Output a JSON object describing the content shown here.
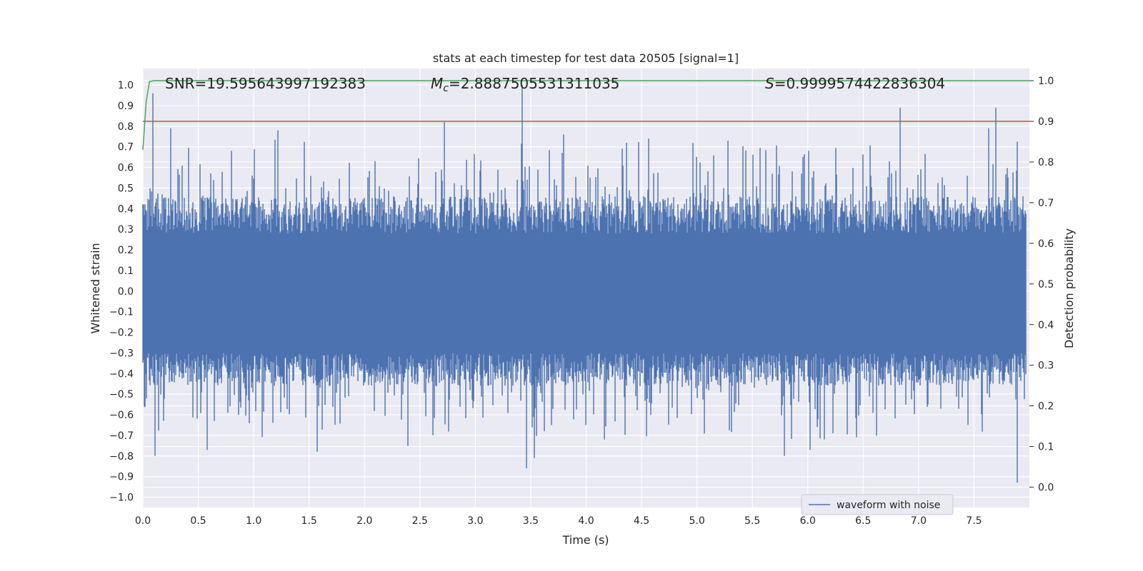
{
  "chart_data": {
    "type": "line",
    "title": "stats at each timestep for test data 20505 [signal=1]",
    "xlabel": "Time (s)",
    "ylabel": "Whitened strain",
    "ylabel_right": "Detection probability",
    "xlim": [
      0.0,
      8.0
    ],
    "ylim": [
      -1.05,
      1.08
    ],
    "ylim_right": [
      -0.05,
      1.03
    ],
    "x_ticks": [
      "0.0",
      "0.5",
      "1.0",
      "1.5",
      "2.0",
      "2.5",
      "3.0",
      "3.5",
      "4.0",
      "4.5",
      "5.0",
      "5.5",
      "6.0",
      "6.5",
      "7.0",
      "7.5"
    ],
    "y_ticks": [
      "1.0",
      "0.9",
      "0.8",
      "0.7",
      "0.6",
      "0.5",
      "0.4",
      "0.3",
      "0.2",
      "0.1",
      "0.0",
      "−0.1",
      "−0.2",
      "−0.3",
      "−0.4",
      "−0.5",
      "−0.6",
      "−0.7",
      "−0.8",
      "−0.9",
      "−1.0"
    ],
    "y_ticks_right": [
      "1.0",
      "0.9",
      "0.8",
      "0.7",
      "0.6",
      "0.5",
      "0.4",
      "0.3",
      "0.2",
      "0.1",
      "0.0"
    ],
    "grid": true,
    "legend": "bottom-right",
    "annotations": {
      "snr": "SNR=19.595643997192383",
      "mc_symbol": "M",
      "mc_sub": "c",
      "mc_value": "=2.8887505531311035",
      "s_symbol": "S",
      "s_value": "=0.9999574422836304"
    },
    "series": [
      {
        "name": "waveform with noise",
        "axis": "left",
        "color": "#4c72b0",
        "description_range": [
          -0.93,
          1.0
        ],
        "peaks": [
          {
            "x": 0.09,
            "y": 0.96
          },
          {
            "x": 0.25,
            "y": 0.79
          },
          {
            "x": 1.22,
            "y": 0.78
          },
          {
            "x": 2.72,
            "y": 0.82
          },
          {
            "x": 3.42,
            "y": 1.0
          },
          {
            "x": 3.8,
            "y": 0.76
          },
          {
            "x": 6.83,
            "y": 0.89
          },
          {
            "x": 7.63,
            "y": 0.79
          },
          {
            "x": 7.7,
            "y": 0.89
          }
        ],
        "troughs": [
          {
            "x": 0.11,
            "y": -0.8
          },
          {
            "x": 0.58,
            "y": -0.77
          },
          {
            "x": 1.57,
            "y": -0.78
          },
          {
            "x": 3.46,
            "y": -0.86
          },
          {
            "x": 3.53,
            "y": -0.81
          },
          {
            "x": 5.79,
            "y": -0.8
          },
          {
            "x": 6.02,
            "y": -0.77
          },
          {
            "x": 7.89,
            "y": -0.93
          }
        ]
      },
      {
        "name": "",
        "axis": "right",
        "color": "#55a868",
        "x": [
          0.0,
          0.03,
          0.06,
          0.1,
          0.2,
          8.0
        ],
        "y": [
          0.83,
          0.95,
          0.998,
          1.0,
          1.0,
          1.0
        ]
      },
      {
        "name": "",
        "axis": "right",
        "color": "#c44e52",
        "x": [
          0.0,
          8.0
        ],
        "y": [
          0.9,
          0.9
        ]
      }
    ]
  }
}
